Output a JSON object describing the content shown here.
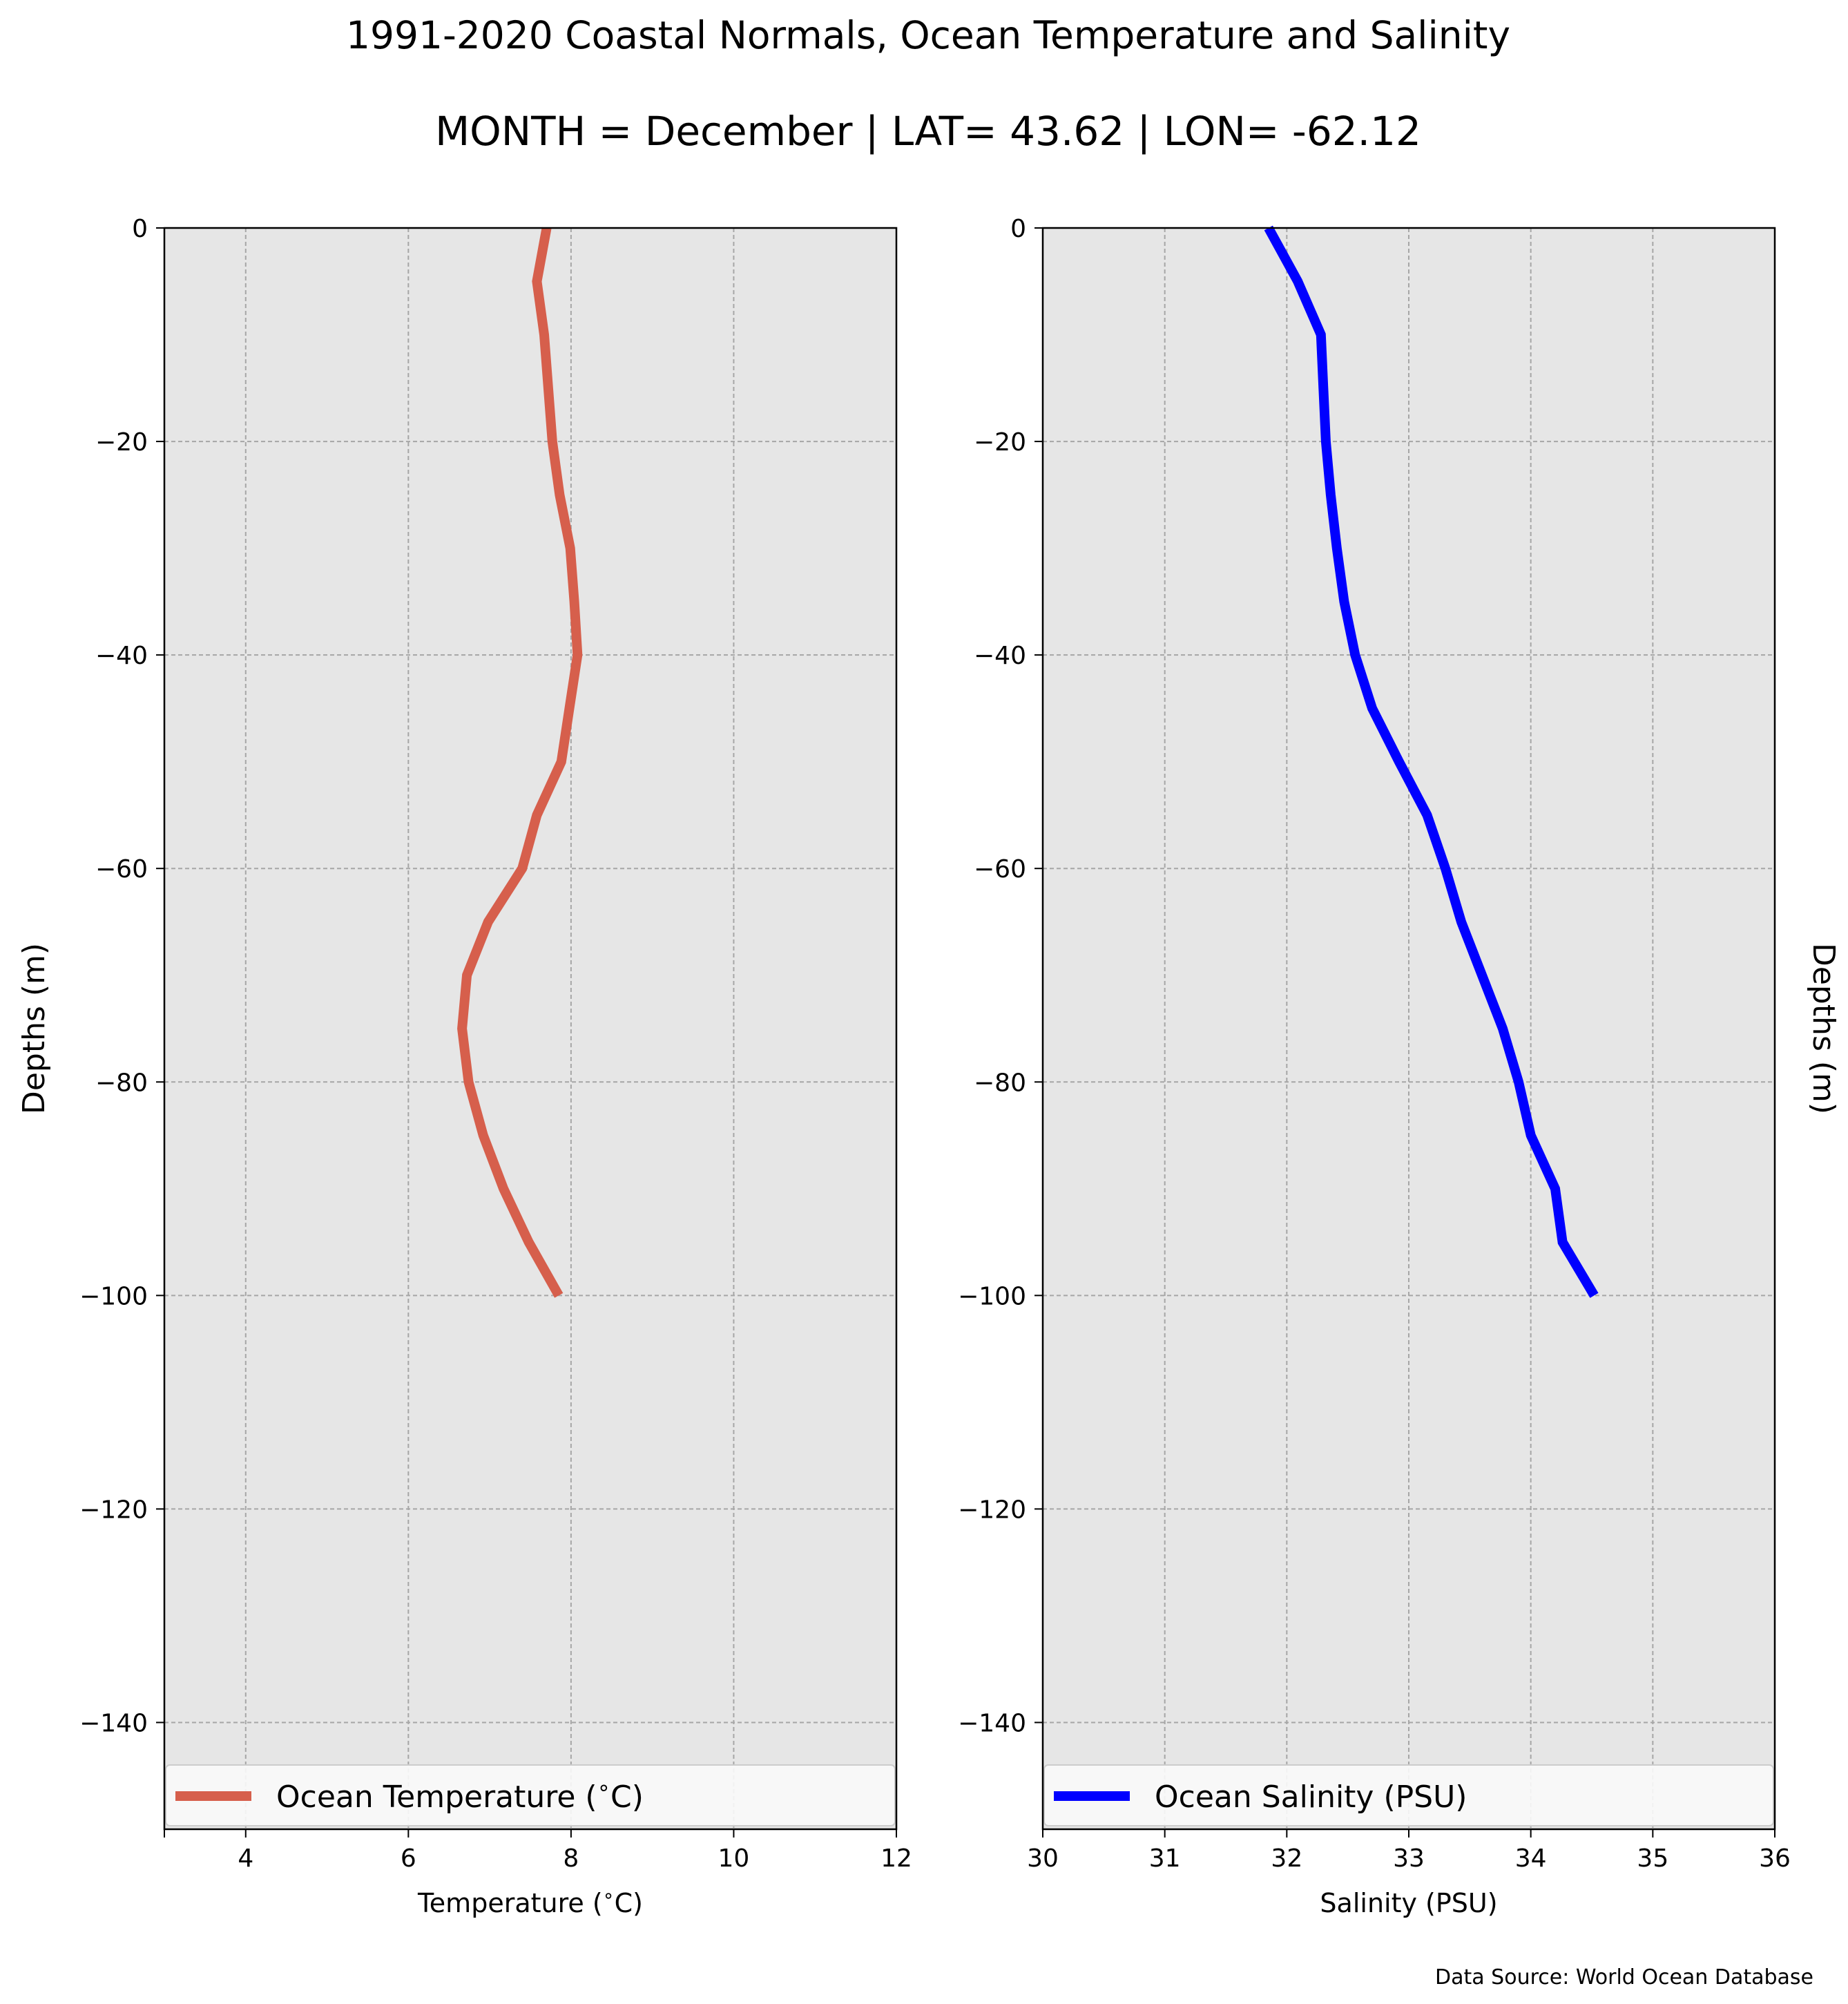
{
  "title": "1991-2020 Coastal Normals, Ocean Temperature and Salinity",
  "subtitle": "MONTH = December | LAT= 43.62 | LON= -62.12",
  "source": "Data Source: World Ocean Database",
  "colors": {
    "plot_background": "#e6e6e6",
    "grid": "#a6a6a6",
    "temperature_line": "#d65f4c",
    "salinity_line": "#0000ff"
  },
  "chart_data": [
    {
      "type": "line",
      "xlabel": "Temperature ($^\\circ$C)",
      "ylabel": "Depths (m)",
      "xlim": [
        3,
        12
      ],
      "ylim": [
        -150,
        0
      ],
      "xticks": [
        4,
        6,
        8,
        10,
        12
      ],
      "xtick_labels": [
        "4",
        "6",
        "8",
        "10",
        "12"
      ],
      "yticks": [
        0,
        -20,
        -40,
        -60,
        -80,
        -100,
        -120,
        -140
      ],
      "ytick_labels": [
        "0",
        "−20",
        "−40",
        "−60",
        "−80",
        "−100",
        "−120",
        "−140"
      ],
      "grid": true,
      "legend_position": "bottom",
      "series": [
        {
          "name": "Ocean Temperature ($^\\circ$C)",
          "x": [
            7.7,
            7.58,
            7.67,
            7.72,
            7.77,
            7.86,
            7.99,
            8.04,
            8.08,
            7.98,
            7.88,
            7.58,
            7.4,
            6.98,
            6.72,
            6.66,
            6.74,
            6.92,
            7.17,
            7.48,
            7.85
          ],
          "y": [
            0,
            -5,
            -10,
            -15,
            -20,
            -25,
            -30,
            -35,
            -40,
            -45,
            -50,
            -55,
            -60,
            -65,
            -70,
            -75,
            -80,
            -85,
            -90,
            -95,
            -100
          ]
        }
      ]
    },
    {
      "type": "line",
      "xlabel": "Salinity (PSU)",
      "ylabel": "Depths (m)",
      "xlim": [
        30,
        36
      ],
      "ylim": [
        -150,
        0
      ],
      "xticks": [
        30,
        31,
        32,
        33,
        34,
        35,
        36
      ],
      "xtick_labels": [
        "30",
        "31",
        "32",
        "33",
        "34",
        "35",
        "36"
      ],
      "yticks": [
        0,
        -20,
        -40,
        -60,
        -80,
        -100,
        -120,
        -140
      ],
      "ytick_labels": [
        "0",
        "−20",
        "−40",
        "−60",
        "−80",
        "−100",
        "−120",
        "−140"
      ],
      "grid": true,
      "legend_position": "bottom",
      "series": [
        {
          "name": "Ocean Salinity (PSU)",
          "x": [
            31.85,
            32.09,
            32.28,
            32.3,
            32.32,
            32.36,
            32.41,
            32.47,
            32.56,
            32.7,
            32.92,
            33.15,
            33.3,
            33.43,
            33.6,
            33.77,
            33.9,
            34.0,
            34.2,
            34.26,
            34.52
          ],
          "y": [
            0,
            -5,
            -10,
            -15,
            -20,
            -25,
            -30,
            -35,
            -40,
            -45,
            -50,
            -55,
            -60,
            -65,
            -70,
            -75,
            -80,
            -85,
            -90,
            -95,
            -100
          ]
        }
      ]
    }
  ]
}
